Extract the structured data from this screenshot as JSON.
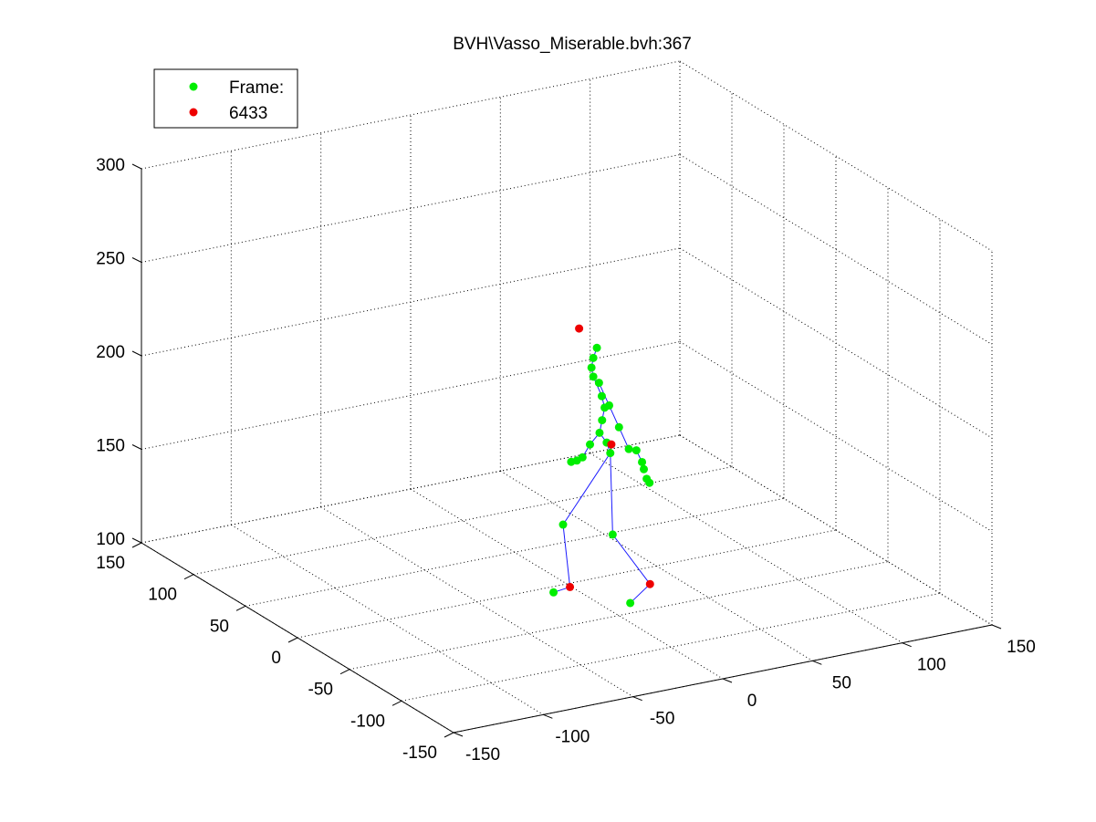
{
  "chart_data": {
    "type": "scatter",
    "title": "BVH\\Vasso_Miserable.bvh:367",
    "legend": {
      "position": "top-left",
      "entries": [
        {
          "label": "Frame:",
          "color": "#00ee00"
        },
        {
          "label": "6433",
          "color": "#ee0000"
        }
      ]
    },
    "axes": {
      "x_ticks": [
        -150,
        -100,
        -50,
        0,
        50,
        100,
        150
      ],
      "y_ticks": [
        -150,
        -100,
        -50,
        0,
        50,
        100,
        150
      ],
      "z_ticks": [
        100,
        150,
        200,
        250,
        300
      ],
      "x_labels": [
        "-150",
        "-100",
        "-50",
        "0",
        "50",
        "100",
        "150"
      ],
      "y_labels": [
        "-150",
        "-100",
        "-50",
        "0",
        "50",
        "100",
        "150"
      ],
      "z_labels": [
        "100",
        "150",
        "200",
        "250",
        "300"
      ],
      "xlim": [
        -150,
        150
      ],
      "ylim": [
        -150,
        150
      ],
      "zlim": [
        100,
        300
      ],
      "grid": true
    },
    "series": [
      {
        "color": "#00ee00",
        "points": [
          [
            40,
            40,
            205
          ],
          [
            38,
            40,
            200
          ],
          [
            37,
            40,
            195
          ],
          [
            38,
            40,
            190
          ],
          [
            40,
            38,
            187
          ],
          [
            41,
            37,
            180
          ],
          [
            42,
            36,
            174
          ],
          [
            40,
            35,
            168
          ],
          [
            38,
            34,
            162
          ],
          [
            48,
            42,
            172
          ],
          [
            50,
            36,
            162
          ],
          [
            52,
            30,
            152
          ],
          [
            42,
            34,
            156
          ],
          [
            35,
            38,
            155
          ],
          [
            32,
            40,
            148
          ],
          [
            30,
            42,
            146
          ],
          [
            28,
            44,
            145
          ],
          [
            62,
            40,
            146
          ],
          [
            64,
            38,
            140
          ],
          [
            65,
            38,
            136
          ],
          [
            66,
            37,
            131
          ],
          [
            67,
            36,
            129
          ],
          [
            44,
            34,
            150
          ],
          [
            43,
            30,
            108
          ],
          [
            20,
            38,
            115
          ],
          [
            17,
            42,
            78
          ],
          [
            47,
            20,
            74
          ]
        ]
      },
      {
        "color": "#ee0000",
        "points": [
          [
            33,
            45,
            215
          ],
          [
            44,
            33,
            155
          ],
          [
            25,
            40,
            80
          ],
          [
            58,
            20,
            82
          ]
        ]
      }
    ],
    "bones": [
      [
        [
          40,
          40,
          205
        ],
        [
          38,
          40,
          200
        ],
        [
          37,
          40,
          195
        ],
        [
          38,
          40,
          190
        ],
        [
          41,
          37,
          180
        ],
        [
          42,
          36,
          174
        ],
        [
          40,
          35,
          168
        ],
        [
          38,
          34,
          162
        ],
        [
          42,
          34,
          156
        ],
        [
          44,
          34,
          150
        ]
      ],
      [
        [
          40,
          38,
          187
        ],
        [
          48,
          42,
          172
        ],
        [
          50,
          36,
          162
        ],
        [
          52,
          30,
          152
        ]
      ],
      [
        [
          38,
          34,
          162
        ],
        [
          35,
          38,
          155
        ],
        [
          32,
          40,
          148
        ]
      ],
      [
        [
          44,
          34,
          150
        ],
        [
          43,
          30,
          108
        ],
        [
          58,
          20,
          82
        ],
        [
          47,
          20,
          74
        ]
      ],
      [
        [
          44,
          34,
          150
        ],
        [
          20,
          38,
          115
        ],
        [
          25,
          40,
          80
        ],
        [
          17,
          42,
          78
        ]
      ],
      [
        [
          62,
          40,
          146
        ],
        [
          64,
          38,
          140
        ]
      ]
    ]
  }
}
